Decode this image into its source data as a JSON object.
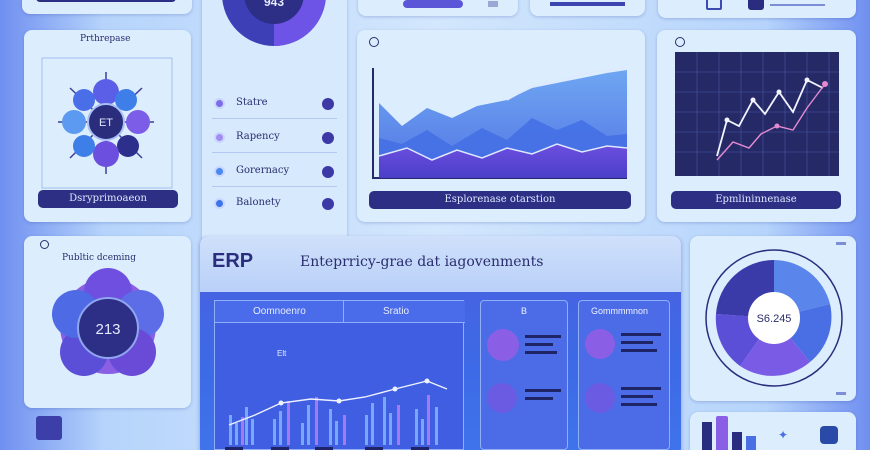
{
  "top_cards": {
    "donut_value": "943"
  },
  "process_card": {
    "title": "Prthrepase",
    "center_label": "ET",
    "footer": "Dsryprimoaeon"
  },
  "menu_card": {
    "items": [
      {
        "label": "Statre"
      },
      {
        "label": "Rapency"
      },
      {
        "label": "Gorernacy"
      },
      {
        "label": "Balonety"
      }
    ]
  },
  "area_chart_card": {
    "footer": "Esplorenase otarstion"
  },
  "line_chart_card": {
    "footer": "Epmlininnenase"
  },
  "public_card": {
    "title": "Publtic dceming",
    "value": "213"
  },
  "erp_panel": {
    "logo": "ERP",
    "title": "Enteprricy-grae dat iagovenments",
    "inner_header_left": "Oomnoenro",
    "inner_header_right": "Sratio",
    "mini_label": "Elt",
    "card_a_header": "B",
    "card_b_header": "Gommmmnon"
  },
  "pie_card": {
    "value": "S6.245"
  },
  "colors": {
    "navy": "#2c2f84",
    "purple": "#6d4fe0",
    "blue": "#3f7ff0",
    "card": "#dcedfd"
  }
}
